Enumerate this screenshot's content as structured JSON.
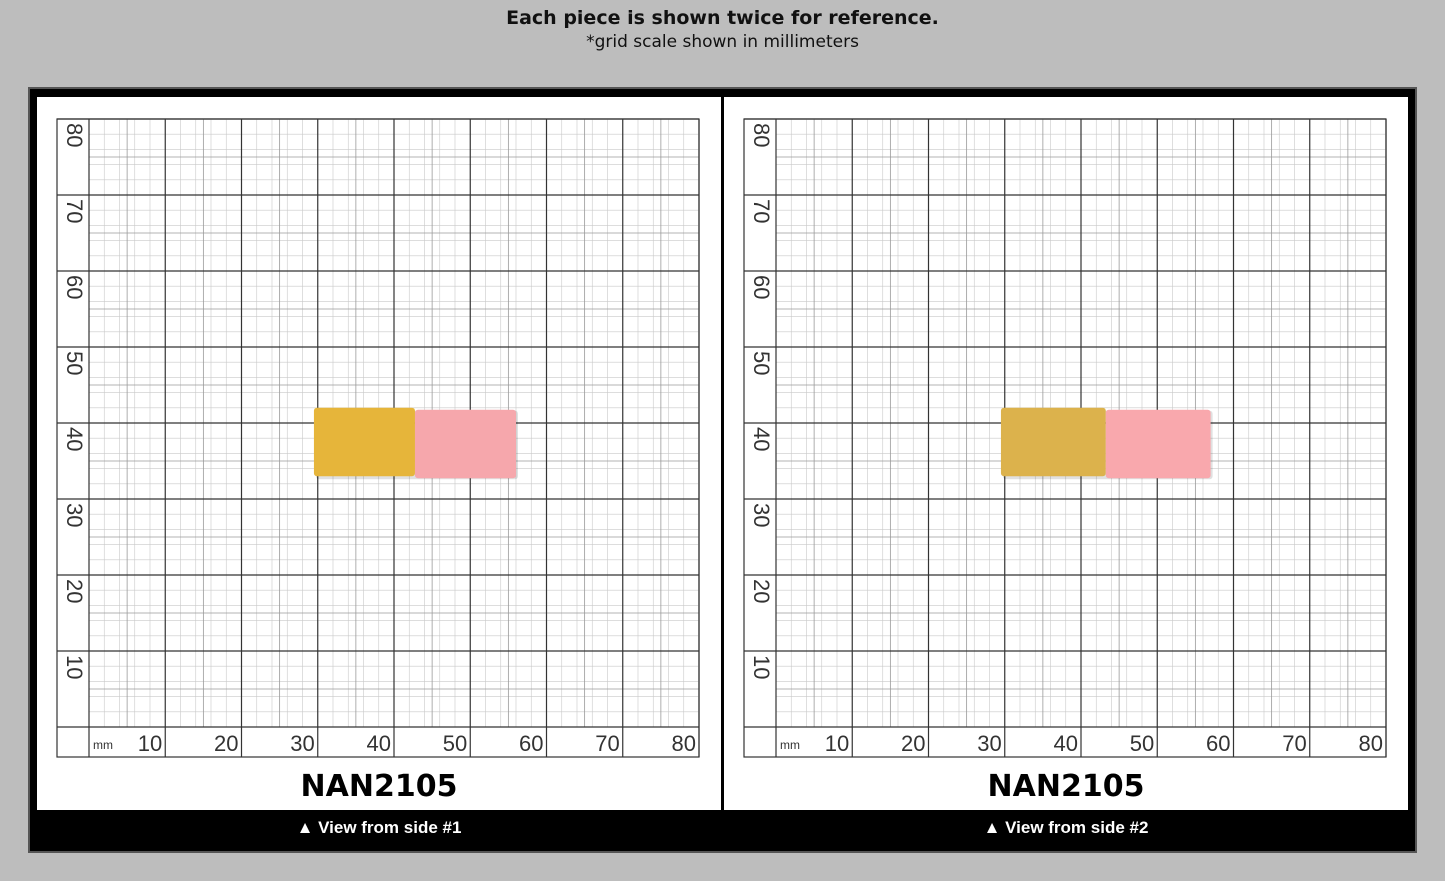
{
  "header": {
    "title": "Each piece is shown twice for reference.",
    "subtitle": "*grid scale shown in millimeters"
  },
  "grid": {
    "unit_label": "mm",
    "x_labels": [
      "10",
      "20",
      "30",
      "40",
      "50",
      "60",
      "70",
      "80"
    ],
    "y_labels": [
      "10",
      "20",
      "30",
      "40",
      "50",
      "60",
      "70",
      "80"
    ]
  },
  "panels": [
    {
      "code": "NAN2105",
      "caption": "▲ View from side #1",
      "piece": {
        "x_start_mm": 29.5,
        "x_end_mm": 56,
        "y_bottom_mm": 33,
        "y_top_mm": 42,
        "colors": [
          "#e6b53a",
          "#f6a7ac"
        ]
      }
    },
    {
      "code": "NAN2105",
      "caption": "▲ View from side #2",
      "piece": {
        "x_start_mm": 29.5,
        "x_end_mm": 57,
        "y_bottom_mm": 33,
        "y_top_mm": 42,
        "colors": [
          "#dcb24c",
          "#f9a8ad"
        ]
      }
    }
  ]
}
